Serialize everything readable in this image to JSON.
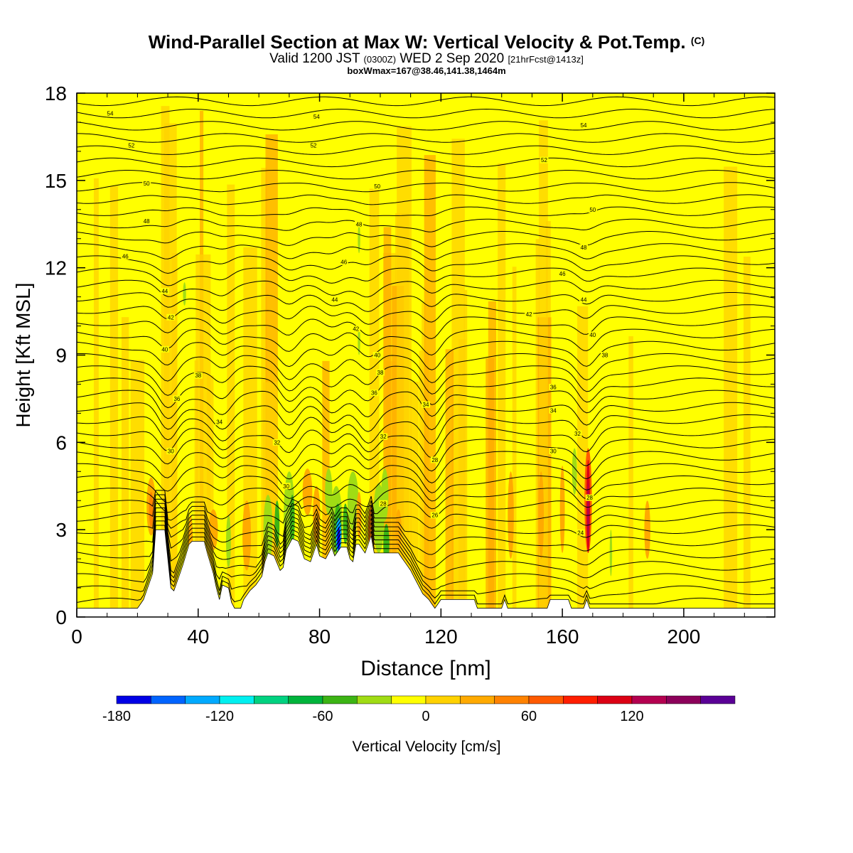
{
  "header": {
    "title_main": "Wind-Parallel Section at Max W: Vertical Velocity & Pot.Temp.",
    "title_copyright": "(C)",
    "valid_prefix": "Valid 1200 JST",
    "valid_utc": "(0300Z)",
    "valid_date": "WED 2 Sep 2020",
    "valid_fcst": "[21hrFcst@1413z]",
    "boxwmax": "boxWmax=167@38.46,141.38,1464m"
  },
  "chart_data": {
    "type": "contour-section",
    "xlabel": "Distance [nm]",
    "ylabel": "Height [Kft MSL]",
    "xlim": [
      0,
      230
    ],
    "ylim": [
      0,
      18
    ],
    "x_ticks": [
      0,
      40,
      80,
      120,
      160,
      200
    ],
    "y_ticks": [
      0,
      3,
      6,
      9,
      12,
      15,
      18
    ],
    "colorbar": {
      "label": "Vertical Velocity [cm/s]",
      "tick_values": [
        -180,
        -120,
        -60,
        0,
        60,
        120
      ],
      "bins": [
        -180,
        -160,
        -140,
        -120,
        -100,
        -80,
        -60,
        -40,
        -20,
        0,
        20,
        40,
        60,
        80,
        100,
        120,
        140,
        160
      ],
      "colors": [
        "#0000e6",
        "#0064ff",
        "#00aaff",
        "#00f0f0",
        "#00d280",
        "#00b43c",
        "#3cb414",
        "#a0dc14",
        "#ffff00",
        "#ffd200",
        "#ffaa00",
        "#ff8200",
        "#ff5a00",
        "#ff1e00",
        "#dc0014",
        "#b40050",
        "#8c005a",
        "#5a0096"
      ]
    },
    "theta_contour_labels": [
      {
        "x": 11,
        "y": 17.3,
        "text": "54"
      },
      {
        "x": 79,
        "y": 17.2,
        "text": "54"
      },
      {
        "x": 167,
        "y": 16.9,
        "text": "54"
      },
      {
        "x": 18,
        "y": 16.2,
        "text": "52"
      },
      {
        "x": 78,
        "y": 16.2,
        "text": "52"
      },
      {
        "x": 154,
        "y": 15.7,
        "text": "52"
      },
      {
        "x": 23,
        "y": 14.9,
        "text": "50"
      },
      {
        "x": 99,
        "y": 14.8,
        "text": "50"
      },
      {
        "x": 170,
        "y": 14.0,
        "text": "50"
      },
      {
        "x": 23,
        "y": 13.6,
        "text": "48"
      },
      {
        "x": 93,
        "y": 13.5,
        "text": "48"
      },
      {
        "x": 167,
        "y": 12.7,
        "text": "48"
      },
      {
        "x": 16,
        "y": 12.4,
        "text": "46"
      },
      {
        "x": 88,
        "y": 12.2,
        "text": "46"
      },
      {
        "x": 160,
        "y": 11.8,
        "text": "46"
      },
      {
        "x": 29,
        "y": 11.2,
        "text": "44"
      },
      {
        "x": 85,
        "y": 10.9,
        "text": "44"
      },
      {
        "x": 167,
        "y": 10.9,
        "text": "44"
      },
      {
        "x": 31,
        "y": 10.3,
        "text": "42"
      },
      {
        "x": 92,
        "y": 9.9,
        "text": "42"
      },
      {
        "x": 149,
        "y": 10.4,
        "text": "42"
      },
      {
        "x": 29,
        "y": 9.2,
        "text": "40"
      },
      {
        "x": 99,
        "y": 9.0,
        "text": "40"
      },
      {
        "x": 170,
        "y": 9.7,
        "text": "40"
      },
      {
        "x": 40,
        "y": 8.3,
        "text": "38"
      },
      {
        "x": 100,
        "y": 8.4,
        "text": "38"
      },
      {
        "x": 174,
        "y": 9.0,
        "text": "38"
      },
      {
        "x": 33,
        "y": 7.5,
        "text": "36"
      },
      {
        "x": 98,
        "y": 7.7,
        "text": "36"
      },
      {
        "x": 157,
        "y": 7.9,
        "text": "36"
      },
      {
        "x": 47,
        "y": 6.7,
        "text": "34"
      },
      {
        "x": 115,
        "y": 7.3,
        "text": "34"
      },
      {
        "x": 157,
        "y": 7.1,
        "text": "34"
      },
      {
        "x": 66,
        "y": 6.0,
        "text": "32"
      },
      {
        "x": 101,
        "y": 6.2,
        "text": "32"
      },
      {
        "x": 165,
        "y": 6.3,
        "text": "32"
      },
      {
        "x": 31,
        "y": 5.7,
        "text": "30"
      },
      {
        "x": 69,
        "y": 4.5,
        "text": "30"
      },
      {
        "x": 157,
        "y": 5.7,
        "text": "30"
      },
      {
        "x": 118,
        "y": 5.4,
        "text": "28"
      },
      {
        "x": 101,
        "y": 3.9,
        "text": "28"
      },
      {
        "x": 169,
        "y": 4.1,
        "text": "28"
      },
      {
        "x": 118,
        "y": 3.5,
        "text": "26"
      },
      {
        "x": 166,
        "y": 2.9,
        "text": "24"
      }
    ],
    "terrain_heights_kft": [
      [
        0,
        0.3
      ],
      [
        20,
        0.3
      ],
      [
        22,
        0.6
      ],
      [
        25,
        1.5
      ],
      [
        26,
        3.0
      ],
      [
        29,
        3.0
      ],
      [
        30,
        2.0
      ],
      [
        31,
        1.0
      ],
      [
        32,
        0.9
      ],
      [
        33,
        1.2
      ],
      [
        35,
        1.8
      ],
      [
        37,
        2.5
      ],
      [
        38,
        2.6
      ],
      [
        42,
        2.6
      ],
      [
        43,
        2.2
      ],
      [
        45,
        1.5
      ],
      [
        46,
        1.0
      ],
      [
        47,
        0.6
      ],
      [
        48,
        1.1
      ],
      [
        50,
        1.0
      ],
      [
        51,
        0.5
      ],
      [
        52,
        0.3
      ],
      [
        54,
        0.3
      ],
      [
        55,
        0.6
      ],
      [
        57,
        0.9
      ],
      [
        59,
        1.1
      ],
      [
        61,
        1.4
      ],
      [
        62,
        1.9
      ],
      [
        63,
        2.2
      ],
      [
        65,
        2.1
      ],
      [
        67,
        1.6
      ],
      [
        68,
        1.7
      ],
      [
        69,
        2.3
      ],
      [
        71,
        2.7
      ],
      [
        73,
        2.6
      ],
      [
        75,
        2.0
      ],
      [
        77,
        1.9
      ],
      [
        78,
        2.2
      ],
      [
        79,
        2.5
      ],
      [
        80,
        2.1
      ],
      [
        82,
        2.0
      ],
      [
        84,
        2.4
      ],
      [
        85,
        2.1
      ],
      [
        87,
        2.4
      ],
      [
        89,
        2.4
      ],
      [
        90,
        2.0
      ],
      [
        91,
        1.9
      ],
      [
        92,
        2.5
      ],
      [
        93,
        2.5
      ],
      [
        95,
        2.2
      ],
      [
        97,
        2.8
      ],
      [
        98,
        2.2
      ],
      [
        106,
        2.2
      ],
      [
        108,
        1.9
      ],
      [
        110,
        1.6
      ],
      [
        112,
        1.2
      ],
      [
        114,
        0.8
      ],
      [
        116,
        0.6
      ],
      [
        118,
        0.3
      ],
      [
        120,
        0.6
      ],
      [
        131,
        0.6
      ],
      [
        132,
        0.3
      ],
      [
        140,
        0.3
      ],
      [
        141,
        0.6
      ],
      [
        142,
        0.3
      ],
      [
        155,
        0.3
      ],
      [
        156,
        0.6
      ],
      [
        162,
        0.6
      ],
      [
        163,
        0.3
      ],
      [
        167,
        0.3
      ],
      [
        168,
        0.6
      ],
      [
        169,
        0.3
      ],
      [
        230,
        0.3
      ]
    ]
  }
}
